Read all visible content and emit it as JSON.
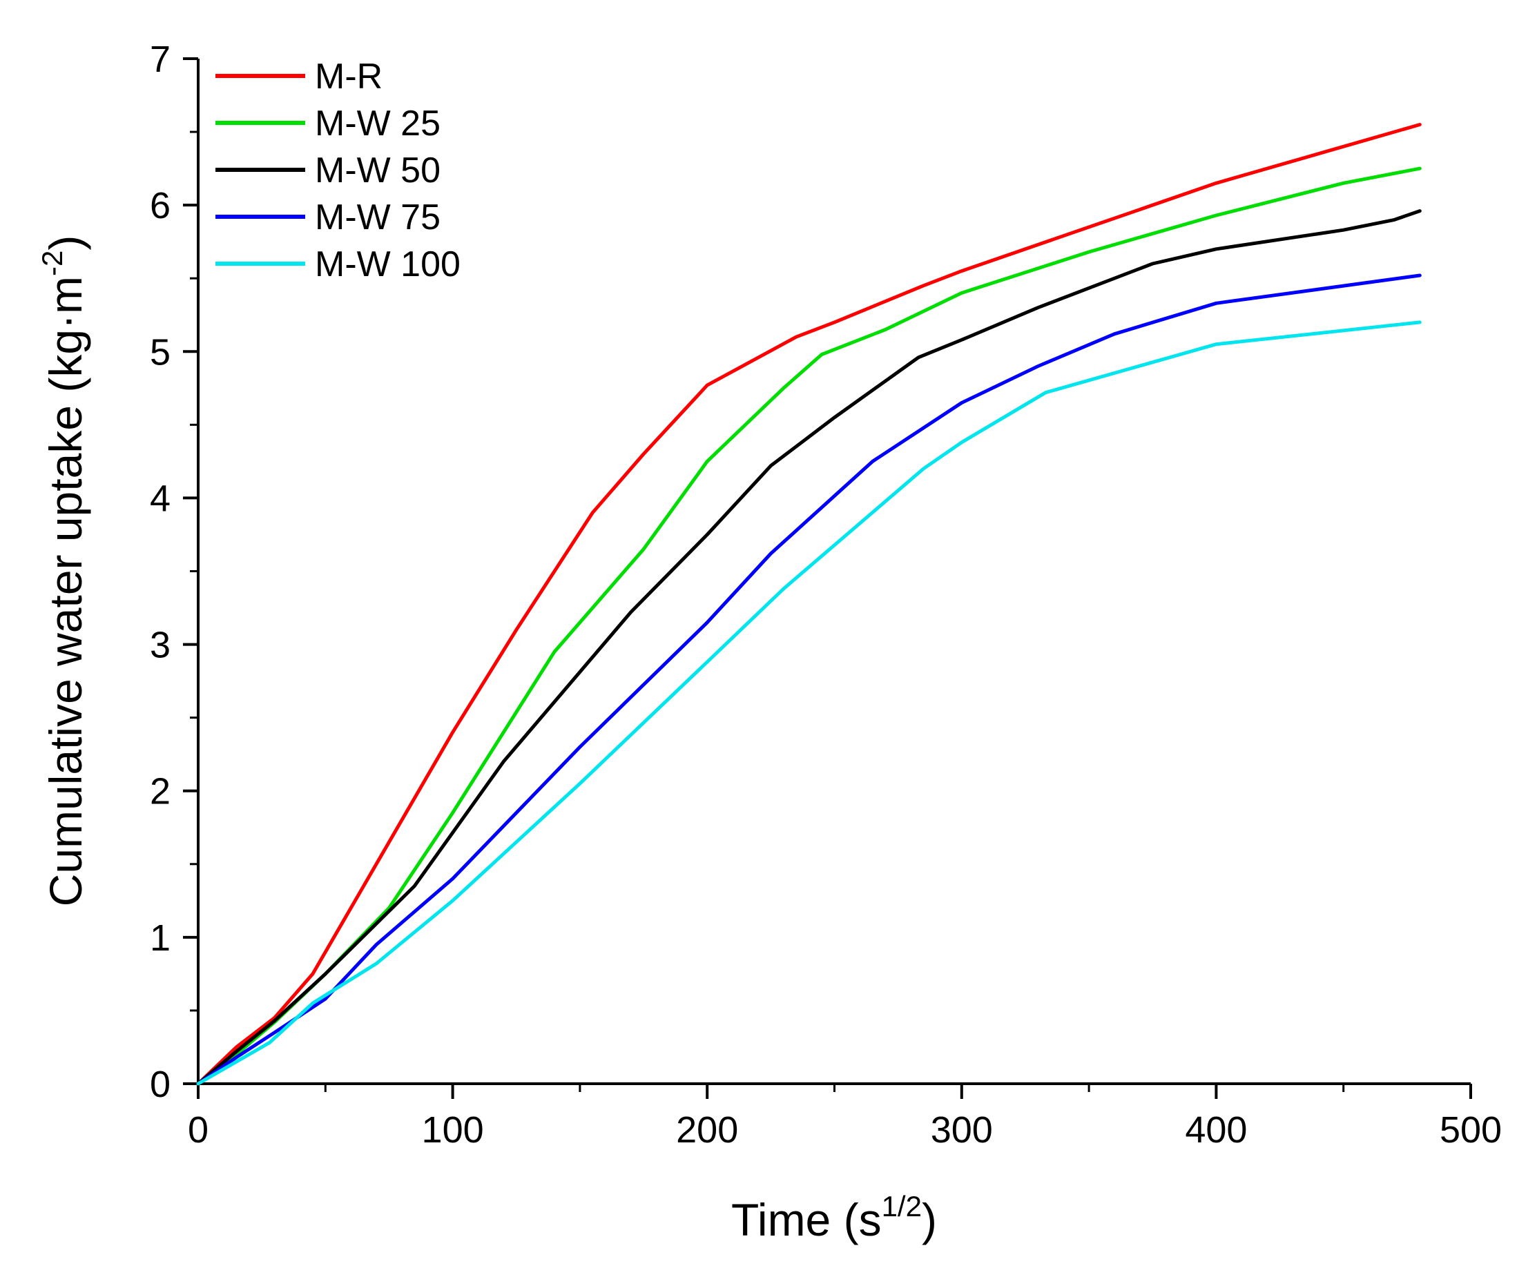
{
  "chart_data": {
    "type": "line",
    "xlabel": "Time (s",
    "xlabel_sup": "1/2",
    "xlabel_end": ")",
    "ylabel": "Cumulative water uptake (kg·m",
    "ylabel_sup": "-2",
    "ylabel_end": ")",
    "xlim": [
      0,
      500
    ],
    "ylim": [
      0,
      7
    ],
    "xticks": [
      "0",
      "100",
      "200",
      "300",
      "400",
      "500"
    ],
    "yticks": [
      "0",
      "1",
      "2",
      "3",
      "4",
      "5",
      "6",
      "7"
    ],
    "grid": false,
    "legend_position": "top-left",
    "series": [
      {
        "name": "M-R",
        "color": "#ff0000",
        "x": [
          0,
          15,
          30,
          45,
          65,
          100,
          125,
          155,
          175,
          200,
          235,
          250,
          285,
          300,
          400,
          480
        ],
        "y": [
          0,
          0.25,
          0.45,
          0.75,
          1.35,
          2.4,
          3.1,
          3.9,
          4.3,
          4.77,
          5.1,
          5.2,
          5.45,
          5.55,
          6.15,
          6.55
        ]
      },
      {
        "name": "M-W 25",
        "color": "#00dd00",
        "x": [
          0,
          15,
          30,
          50,
          75,
          100,
          140,
          175,
          200,
          230,
          245,
          270,
          300,
          350,
          400,
          450,
          480
        ],
        "y": [
          0,
          0.2,
          0.42,
          0.75,
          1.2,
          1.85,
          2.95,
          3.65,
          4.25,
          4.75,
          4.98,
          5.15,
          5.4,
          5.68,
          5.93,
          6.15,
          6.25
        ]
      },
      {
        "name": "M-W 50",
        "color": "#000000",
        "x": [
          0,
          15,
          30,
          50,
          85,
          120,
          170,
          200,
          225,
          250,
          283,
          300,
          330,
          375,
          400,
          450,
          470,
          480
        ],
        "y": [
          0,
          0.22,
          0.43,
          0.75,
          1.35,
          2.2,
          3.22,
          3.75,
          4.22,
          4.55,
          4.96,
          5.08,
          5.3,
          5.6,
          5.7,
          5.83,
          5.9,
          5.96
        ]
      },
      {
        "name": "M-W 75",
        "color": "#0000ff",
        "x": [
          0,
          15,
          30,
          50,
          70,
          100,
          150,
          200,
          225,
          265,
          300,
          330,
          360,
          400,
          480
        ],
        "y": [
          0,
          0.18,
          0.35,
          0.58,
          0.95,
          1.4,
          2.3,
          3.15,
          3.62,
          4.25,
          4.65,
          4.9,
          5.12,
          5.33,
          5.52
        ]
      },
      {
        "name": "M-W 100",
        "color": "#00e5ee",
        "x": [
          0,
          15,
          28,
          45,
          70,
          100,
          150,
          200,
          230,
          285,
          300,
          333,
          400,
          480
        ],
        "y": [
          0,
          0.15,
          0.28,
          0.55,
          0.82,
          1.25,
          2.05,
          2.88,
          3.38,
          4.2,
          4.38,
          4.72,
          5.05,
          5.2
        ]
      }
    ]
  }
}
